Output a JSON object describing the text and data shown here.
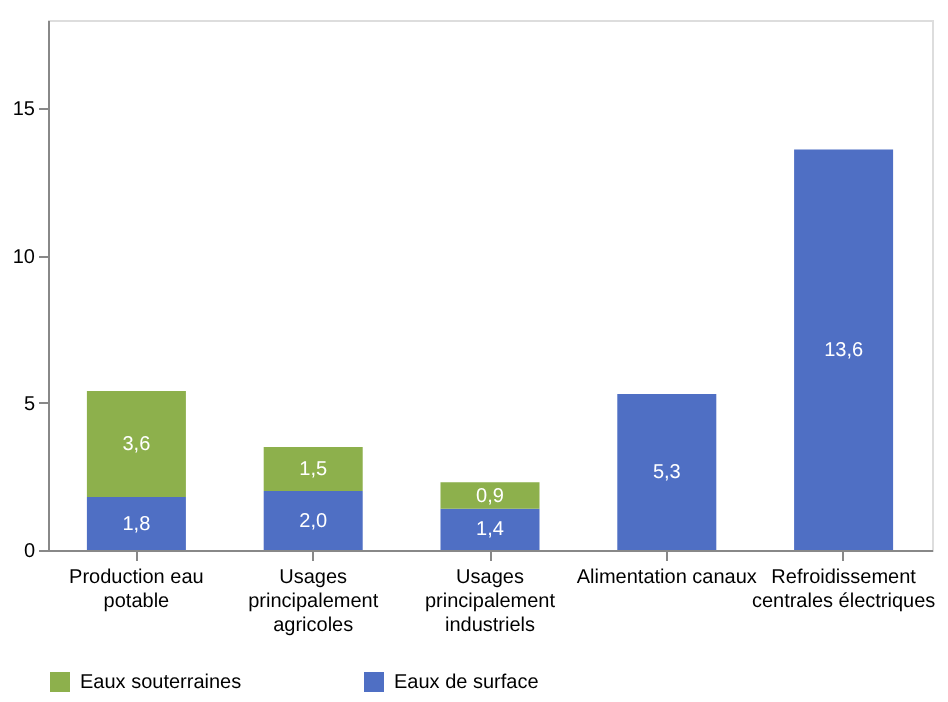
{
  "chart_data": {
    "type": "bar",
    "stacked": true,
    "categories": [
      "Production eau\npotable",
      "Usages\nprincipalement\nagricoles",
      "Usages\nprincipalement\nindustriels",
      "Alimentation canaux",
      "Refroidissement\ncentrales électriques"
    ],
    "series": [
      {
        "name": "Eaux de surface",
        "color": "#4f6fc4",
        "values": [
          1.8,
          2.0,
          1.4,
          5.3,
          13.6
        ],
        "value_labels": [
          "1,8",
          "2,0",
          "1,4",
          "5,3",
          "13,6"
        ]
      },
      {
        "name": "Eaux souterraines",
        "color": "#8db04c",
        "values": [
          3.6,
          1.5,
          0.9,
          null,
          null
        ],
        "value_labels": [
          "3,6",
          "1,5",
          "0,9",
          null,
          null
        ]
      }
    ],
    "ylim": [
      0,
      18
    ],
    "yticks": [
      0,
      5,
      10,
      15
    ],
    "grid": false,
    "legend": "bottom"
  }
}
